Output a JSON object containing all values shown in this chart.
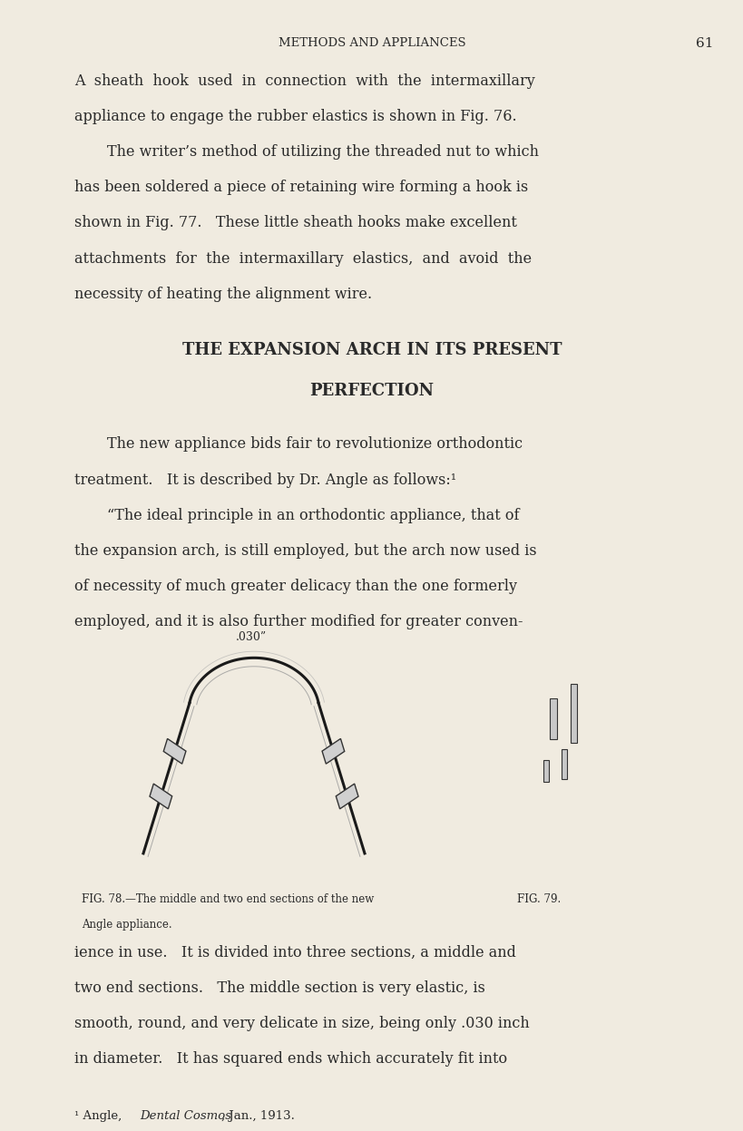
{
  "bg_color": "#f0ebe0",
  "text_color": "#2a2a2a",
  "page_width": 8.0,
  "page_height": 12.21,
  "header_text": "METHODS AND APPLIANCES",
  "page_number": "61",
  "section_title_line1": "THE EXPANSION ARCH IN ITS PRESENT",
  "section_title_line2": "PERFECTION",
  "fig78_caption_line1": "FIG. 78.—The middle and two end sections of the new",
  "fig78_caption_line2": "Angle appliance.",
  "fig79_label": "FIG. 79.",
  "footnote_prefix": "¹ Angle, ",
  "footnote_italic": "Dental Cosmos",
  "footnote_suffix": ", Jan., 1913."
}
